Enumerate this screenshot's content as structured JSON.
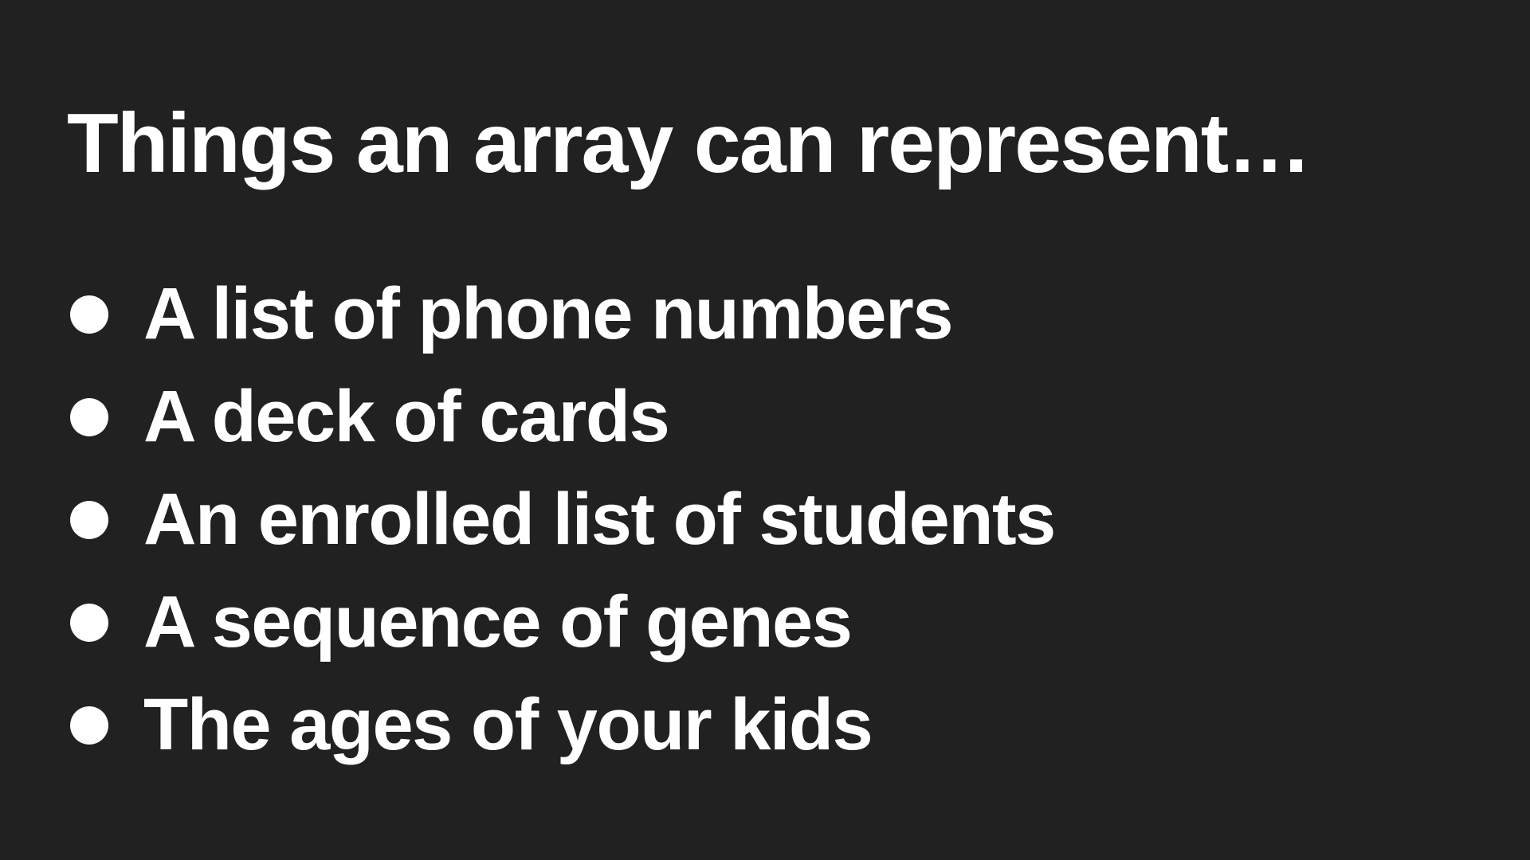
{
  "slide": {
    "title": "Things an array can represent…",
    "bullets": [
      "A list of phone numbers",
      "A deck of cards",
      "An enrolled list of students",
      "A sequence of genes",
      "The ages of your kids"
    ]
  },
  "colors": {
    "background": "#212121",
    "text": "#ffffff"
  }
}
